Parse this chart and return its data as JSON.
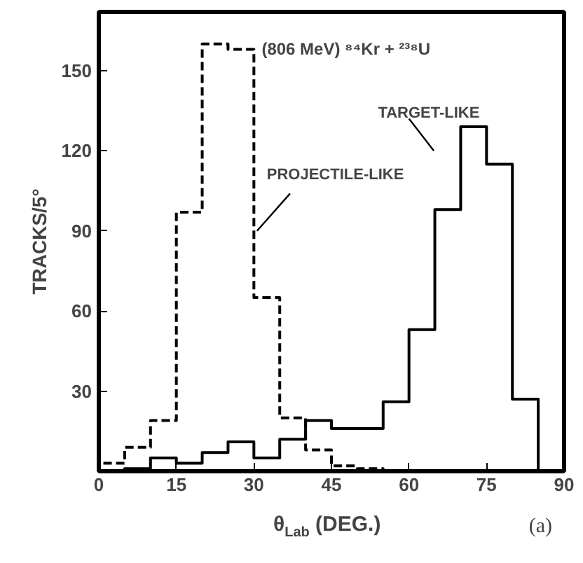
{
  "chart_data": {
    "type": "histogram",
    "title": "(806 MeV) ⁸⁴Kr + ²³⁸U",
    "xlabel": "θ$_{Lab}$ (DEG.)",
    "ylabel": "TRACKS/5°",
    "annotations": [
      "(a)"
    ],
    "bins": [
      0,
      5,
      10,
      15,
      20,
      25,
      30,
      35,
      40,
      45,
      50,
      55,
      60,
      65,
      70,
      75,
      80,
      85,
      90
    ],
    "series": [
      {
        "name": "PROJECTILE-LIKE",
        "color": "#000000",
        "line_style": "dashed",
        "values": [
          3,
          9,
          19,
          97,
          160,
          158,
          65,
          20,
          8,
          2,
          1,
          0,
          0,
          0,
          0,
          0,
          0,
          0
        ]
      },
      {
        "name": "TARGET-LIKE",
        "color": "#000000",
        "line_style": "solid",
        "values": [
          0,
          1,
          5,
          3,
          7,
          11,
          5,
          12,
          19,
          16,
          16,
          26,
          53,
          98,
          129,
          115,
          27,
          0
        ]
      }
    ],
    "xlim": [
      0,
      90
    ],
    "ylim": [
      0,
      172
    ],
    "xticks": [
      0,
      15,
      30,
      45,
      60,
      75,
      90
    ],
    "yticks": [
      30,
      60,
      90,
      120,
      150
    ],
    "grid": false,
    "marker": "none"
  }
}
